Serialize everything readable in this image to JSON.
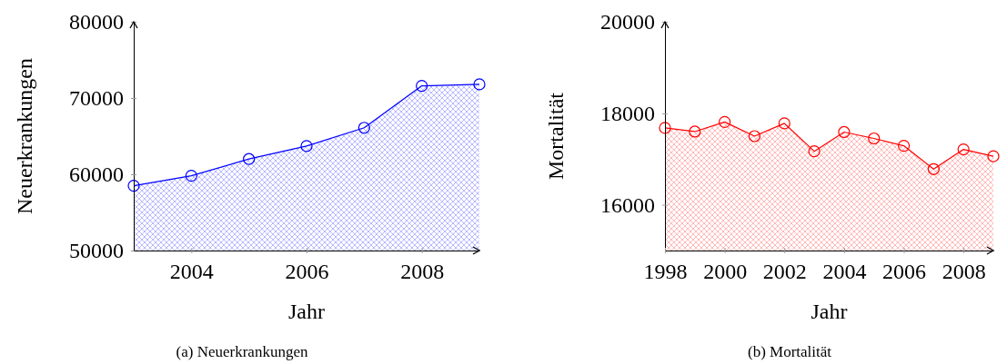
{
  "chart_data": [
    {
      "type": "area",
      "xlabel": "Jahr",
      "ylabel": "Neuerkrankungen",
      "annotations": [
        "(a) Neuerkrankungen"
      ],
      "marker": "circle",
      "x": [
        2003,
        2004,
        2005,
        2006,
        2007,
        2008,
        2009
      ],
      "series": [
        {
          "color": "#0000ff",
          "values": [
            58500,
            59800,
            62000,
            63700,
            66100,
            71600,
            71800
          ]
        }
      ],
      "xlim": [
        2003,
        2009
      ],
      "xticks": [
        2004,
        2006,
        2008
      ],
      "ylim": [
        50000,
        80000
      ],
      "yticks": [
        50000,
        60000,
        70000,
        80000
      ]
    },
    {
      "type": "area",
      "xlabel": "Jahr",
      "ylabel": "Mortalität",
      "annotations": [
        "(b) Mortalität"
      ],
      "marker": "circle",
      "x": [
        1998,
        1999,
        2000,
        2001,
        2002,
        2003,
        2004,
        2005,
        2006,
        2007,
        2008,
        2009
      ],
      "series": [
        {
          "color": "#ff0000",
          "values": [
            17680,
            17600,
            17810,
            17500,
            17780,
            17170,
            17590,
            17450,
            17290,
            16780,
            17210,
            17060
          ]
        }
      ],
      "xlim": [
        1998,
        2009
      ],
      "xticks": [
        1998,
        2000,
        2002,
        2004,
        2006,
        2008
      ],
      "ylim": [
        15000,
        20000
      ],
      "yticks": [
        16000,
        18000,
        20000
      ]
    }
  ]
}
